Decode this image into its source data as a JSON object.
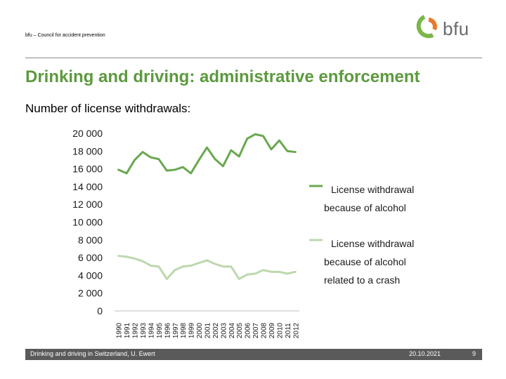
{
  "header": {
    "org": "bfu – Council for accident prevention",
    "logo_text": "bfu"
  },
  "slide": {
    "title": "Drinking and driving: administrative enforcement",
    "subtitle": "Number of license withdrawals:"
  },
  "colors": {
    "title": "#5c9a3e",
    "series_dark": "#6aa84f",
    "series_light": "#bcd8ae",
    "footer_bg": "#5a5a5a"
  },
  "chart_data": {
    "type": "line",
    "title": "Number of license withdrawals:",
    "xlabel": "",
    "ylabel": "",
    "ylim": [
      0,
      20000
    ],
    "yticks": [
      0,
      2000,
      4000,
      6000,
      8000,
      10000,
      12000,
      14000,
      16000,
      18000,
      20000
    ],
    "ytick_labels": [
      "0",
      "2 000",
      "4 000",
      "6 000",
      "8 000",
      "10 000",
      "12 000",
      "14 000",
      "16 000",
      "18 000",
      "20 000"
    ],
    "x": [
      "1990",
      "1991",
      "1992",
      "1993",
      "1994",
      "1995",
      "1996",
      "1997",
      "1998",
      "1999",
      "2000",
      "2001",
      "2002",
      "2003",
      "2004",
      "2005",
      "2006",
      "2007",
      "2008",
      "2009",
      "2010",
      "2011",
      "2012"
    ],
    "series": [
      {
        "name": "License withdrawal because of alcohol",
        "legend_lines": [
          "License withdrawal",
          "because of alcohol"
        ],
        "values": [
          15900,
          15500,
          17000,
          17900,
          17300,
          17100,
          15800,
          15900,
          16200,
          15500,
          17000,
          18400,
          17100,
          16300,
          18100,
          17400,
          19400,
          19900,
          19700,
          18200,
          19200,
          18000,
          17900
        ]
      },
      {
        "name": "License withdrawal because of alcohol related to a crash",
        "legend_lines": [
          "License withdrawal",
          "because of alcohol",
          "related to  a crash"
        ],
        "values": [
          6200,
          6100,
          5900,
          5600,
          5100,
          5000,
          3600,
          4600,
          5000,
          5100,
          5400,
          5700,
          5300,
          5000,
          5000,
          3600,
          4100,
          4200,
          4600,
          4400,
          4400,
          4200,
          4400
        ]
      }
    ]
  },
  "footer": {
    "left": "Drinking and driving in Switzerland, U. Ewert",
    "date": "20.10.2021",
    "page": "9"
  }
}
